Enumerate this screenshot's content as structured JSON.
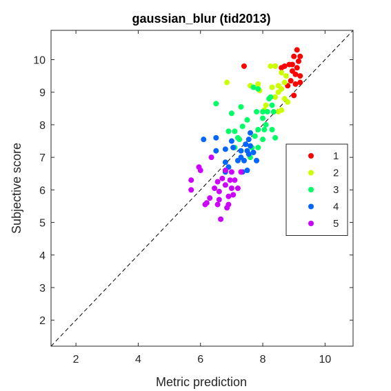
{
  "chart_data": {
    "type": "scatter",
    "title": "gaussian_blur (tid2013)",
    "xlabel": "Metric prediction",
    "ylabel": "Subjective score",
    "xlim": [
      1.2,
      10.9
    ],
    "ylim": [
      1.2,
      10.9
    ],
    "xticks": [
      2,
      4,
      6,
      8,
      10
    ],
    "yticks": [
      2,
      3,
      4,
      5,
      6,
      7,
      8,
      9,
      10
    ],
    "grid": false,
    "box": true,
    "reference_line": {
      "style": "dashed",
      "color": "#000000",
      "from": [
        1.2,
        1.2
      ],
      "to": [
        10.9,
        10.9
      ]
    },
    "legend": {
      "placement": "right"
    },
    "series": [
      {
        "name": "1",
        "color": "#ff0000",
        "points": [
          [
            9.1,
            10.3
          ],
          [
            9.2,
            10.1
          ],
          [
            9.0,
            10.1
          ],
          [
            9.15,
            9.95
          ],
          [
            8.95,
            9.85
          ],
          [
            8.85,
            9.85
          ],
          [
            9.1,
            9.75
          ],
          [
            8.95,
            9.65
          ],
          [
            9.05,
            9.55
          ],
          [
            9.2,
            9.5
          ],
          [
            8.7,
            9.8
          ],
          [
            8.6,
            9.75
          ],
          [
            7.4,
            9.8
          ],
          [
            8.9,
            9.35
          ],
          [
            9.05,
            9.25
          ],
          [
            9.2,
            9.3
          ],
          [
            8.8,
            9.2
          ],
          [
            9.0,
            8.9
          ],
          [
            8.4,
            9.8
          ]
        ]
      },
      {
        "name": "2",
        "color": "#ccff00",
        "points": [
          [
            8.25,
            9.8
          ],
          [
            8.4,
            9.8
          ],
          [
            8.6,
            9.6
          ],
          [
            8.75,
            9.5
          ],
          [
            8.7,
            9.3
          ],
          [
            8.5,
            9.2
          ],
          [
            8.6,
            9.1
          ],
          [
            8.3,
            9.15
          ],
          [
            8.5,
            9.0
          ],
          [
            8.7,
            8.8
          ],
          [
            8.8,
            8.7
          ],
          [
            8.4,
            8.85
          ],
          [
            7.6,
            9.2
          ],
          [
            7.85,
            9.25
          ],
          [
            6.85,
            9.3
          ],
          [
            7.9,
            9.05
          ],
          [
            8.1,
            8.6
          ],
          [
            8.05,
            8.45
          ],
          [
            8.6,
            8.45
          ],
          [
            8.5,
            8.4
          ]
        ]
      },
      {
        "name": "3",
        "color": "#00ff66",
        "points": [
          [
            7.7,
            9.15
          ],
          [
            7.85,
            9.1
          ],
          [
            8.2,
            8.8
          ],
          [
            8.25,
            8.85
          ],
          [
            8.3,
            8.6
          ],
          [
            7.3,
            8.55
          ],
          [
            6.5,
            8.65
          ],
          [
            7.0,
            8.35
          ],
          [
            7.8,
            8.4
          ],
          [
            8.0,
            8.4
          ],
          [
            8.15,
            8.4
          ],
          [
            8.35,
            8.4
          ],
          [
            7.5,
            8.15
          ],
          [
            8.0,
            8.2
          ],
          [
            8.1,
            8.0
          ],
          [
            7.35,
            7.95
          ],
          [
            7.85,
            7.85
          ],
          [
            8.05,
            7.85
          ],
          [
            8.3,
            7.85
          ],
          [
            7.75,
            7.65
          ],
          [
            8.0,
            7.55
          ],
          [
            8.4,
            7.6
          ],
          [
            7.85,
            7.3
          ],
          [
            6.9,
            7.8
          ],
          [
            7.25,
            7.55
          ],
          [
            7.1,
            7.3
          ],
          [
            7.1,
            7.8
          ],
          [
            7.65,
            7.3
          ],
          [
            7.6,
            7.0
          ],
          [
            7.2,
            7.6
          ]
        ]
      },
      {
        "name": "4",
        "color": "#0066ff",
        "points": [
          [
            7.6,
            7.75
          ],
          [
            7.55,
            7.55
          ],
          [
            6.1,
            7.55
          ],
          [
            6.5,
            7.6
          ],
          [
            7.0,
            7.5
          ],
          [
            7.45,
            7.4
          ],
          [
            7.6,
            7.35
          ],
          [
            6.5,
            7.2
          ],
          [
            6.8,
            7.25
          ],
          [
            7.3,
            7.2
          ],
          [
            7.5,
            7.2
          ],
          [
            7.7,
            7.15
          ],
          [
            7.3,
            7.0
          ],
          [
            7.55,
            7.1
          ],
          [
            7.4,
            6.9
          ],
          [
            7.8,
            6.9
          ],
          [
            6.8,
            6.85
          ],
          [
            7.2,
            6.9
          ],
          [
            6.9,
            6.7
          ],
          [
            7.5,
            6.6
          ],
          [
            7.35,
            6.55
          ],
          [
            6.8,
            6.55
          ],
          [
            7.05,
            7.3
          ]
        ]
      },
      {
        "name": "5",
        "color": "#cc00ff",
        "points": [
          [
            6.35,
            7.0
          ],
          [
            5.95,
            6.7
          ],
          [
            6.0,
            6.6
          ],
          [
            6.8,
            6.6
          ],
          [
            7.0,
            6.55
          ],
          [
            7.3,
            6.55
          ],
          [
            5.7,
            6.3
          ],
          [
            6.7,
            6.35
          ],
          [
            6.95,
            6.3
          ],
          [
            7.1,
            6.3
          ],
          [
            6.55,
            6.25
          ],
          [
            6.8,
            6.15
          ],
          [
            6.45,
            6.05
          ],
          [
            7.0,
            6.05
          ],
          [
            7.2,
            6.05
          ],
          [
            5.7,
            6.0
          ],
          [
            6.6,
            5.95
          ],
          [
            7.05,
            5.85
          ],
          [
            6.9,
            5.8
          ],
          [
            6.3,
            5.75
          ],
          [
            6.6,
            5.7
          ],
          [
            6.2,
            5.6
          ],
          [
            6.15,
            5.55
          ],
          [
            6.55,
            5.55
          ],
          [
            6.9,
            5.55
          ],
          [
            6.85,
            5.45
          ],
          [
            6.65,
            5.1
          ]
        ]
      }
    ]
  }
}
